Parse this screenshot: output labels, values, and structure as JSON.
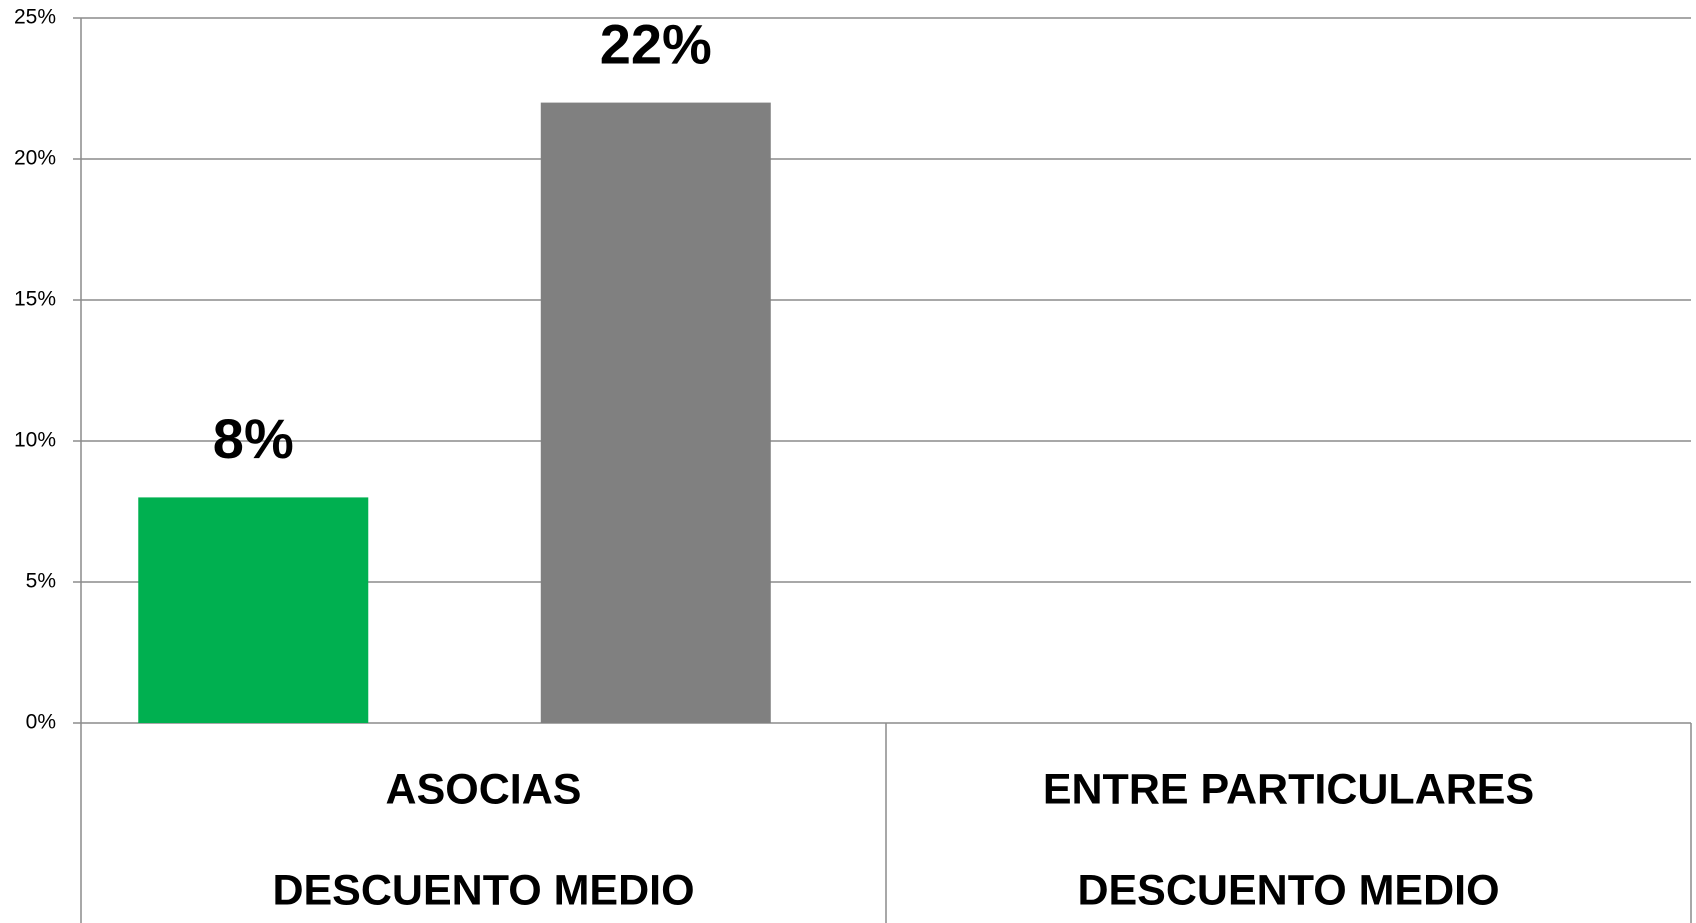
{
  "chart_data": {
    "type": "bar",
    "categories": [
      "ASOCIAS",
      "ENTRE PARTICULARES"
    ],
    "category_sublabels": [
      "DESCUENTO MEDIO",
      "DESCUENTO MEDIO"
    ],
    "values": [
      8,
      22
    ],
    "value_labels": [
      "8%",
      "22%"
    ],
    "colors": [
      "#00b050",
      "#808080"
    ],
    "ylim": [
      0,
      25
    ],
    "yticks": [
      {
        "value": 0,
        "label": "0%"
      },
      {
        "value": 5,
        "label": "5%"
      },
      {
        "value": 10,
        "label": "10%"
      },
      {
        "value": 15,
        "label": "15%"
      },
      {
        "value": 20,
        "label": "20%"
      },
      {
        "value": 25,
        "label": "25%"
      }
    ],
    "grid": true
  }
}
